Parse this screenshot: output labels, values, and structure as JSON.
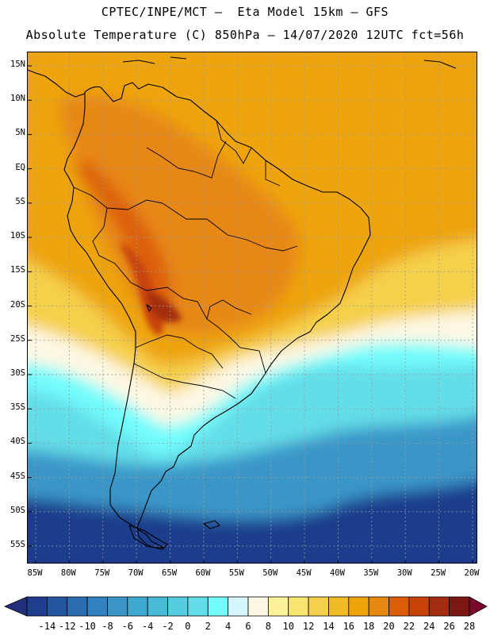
{
  "header": {
    "line1": "CPTEC/INPE/MCT –  Eta Model 15km – GFS",
    "line2": "Absolute Temperature (C) 850hPa – 14/07/2020 12UTC fct=56h"
  },
  "map": {
    "lat_labels": [
      "15N",
      "10N",
      "5N",
      "EQ",
      "5S",
      "10S",
      "15S",
      "20S",
      "25S",
      "30S",
      "35S",
      "40S",
      "45S",
      "50S",
      "55S"
    ],
    "lon_labels": [
      "85W",
      "80W",
      "75W",
      "70W",
      "65W",
      "60W",
      "55W",
      "50W",
      "45W",
      "40W",
      "35W",
      "30W",
      "25W",
      "20W"
    ],
    "lat_range": [
      15,
      -55
    ],
    "lon_range": [
      -85,
      -20
    ]
  },
  "colorbar": {
    "labels": [
      "-14",
      "-12",
      "-10",
      "-8",
      "-6",
      "-4",
      "-2",
      "0",
      "2",
      "4",
      "6",
      "8",
      "10",
      "12",
      "14",
      "16",
      "18",
      "20",
      "22",
      "24",
      "26",
      "28"
    ],
    "colors": [
      "#1f3e8c",
      "#24559f",
      "#2c6cb0",
      "#3481c0",
      "#3a96c8",
      "#3fa8d0",
      "#48bad6",
      "#55ccdf",
      "#64dde8",
      "#72fcfc",
      "#d4f6fc",
      "#fdf8e4",
      "#fdf29a",
      "#f9e472",
      "#f5d04c",
      "#f0bb26",
      "#eea40a",
      "#e78812",
      "#dc5d07",
      "#c7430a",
      "#a32d10",
      "#7b1813"
    ],
    "underflow_color": "#1f2f7a",
    "overflow_color": "#7a0a2a"
  }
}
